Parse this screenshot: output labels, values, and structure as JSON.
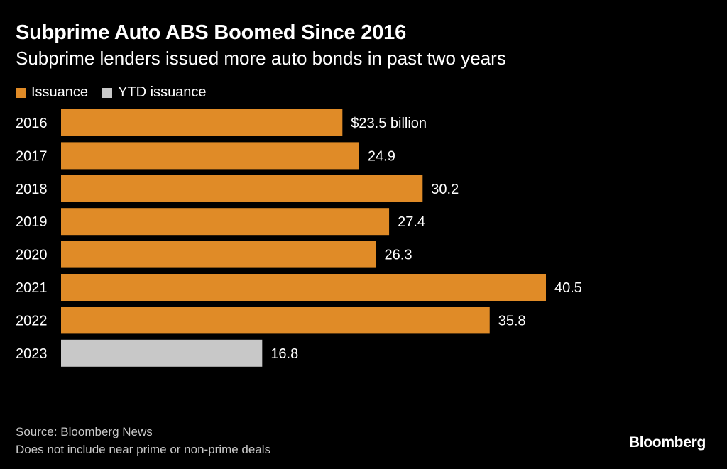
{
  "colors": {
    "background": "#000000",
    "issuance": "#E08B27",
    "ytd_issuance": "#C8C8C8",
    "text": "#FFFFFF",
    "footer_text": "#C8C8C8"
  },
  "chart_data": {
    "type": "bar",
    "orientation": "horizontal",
    "title": "Subprime Auto ABS Boomed Since 2016",
    "subtitle": "Subprime lenders issued more auto bonds in past two years",
    "legend": [
      {
        "label": "Issuance",
        "color": "#E08B27"
      },
      {
        "label": "YTD issuance",
        "color": "#C8C8C8"
      }
    ],
    "categories": [
      "2016",
      "2017",
      "2018",
      "2019",
      "2020",
      "2021",
      "2022",
      "2023"
    ],
    "values": [
      23.5,
      24.9,
      30.2,
      27.4,
      26.3,
      40.5,
      35.8,
      16.8
    ],
    "value_labels": [
      "$23.5 billion",
      "24.9",
      "30.2",
      "27.4",
      "26.3",
      "40.5",
      "35.8",
      "16.8"
    ],
    "series_kind": [
      "issuance",
      "issuance",
      "issuance",
      "issuance",
      "issuance",
      "issuance",
      "issuance",
      "ytd_issuance"
    ],
    "unit": "billion USD",
    "xlim": [
      0,
      40.5
    ],
    "grid": false
  },
  "footer": {
    "source": "Source: Bloomberg News",
    "note": "Does not include near prime or non-prime deals"
  },
  "brand": "Bloomberg"
}
